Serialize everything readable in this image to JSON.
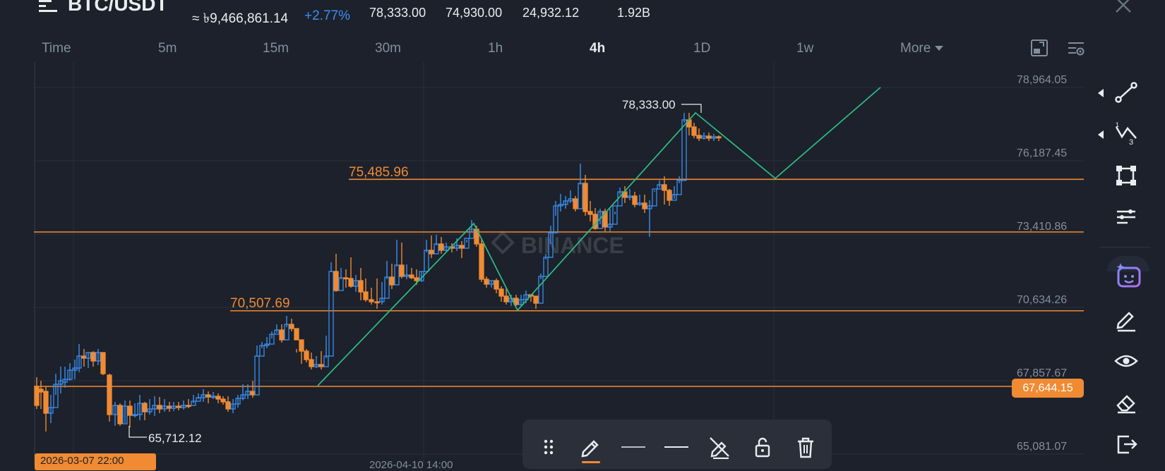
{
  "header": {
    "pair": "BTC/USDT",
    "approx_value": "≈ ৳9,466,861.14",
    "change_pct": "+2.77%",
    "stats": [
      "78,333.00",
      "74,930.00",
      "24,932.12",
      "1.92B"
    ]
  },
  "timeframes": {
    "items": [
      "Time",
      "5m",
      "15m",
      "30m",
      "1h",
      "4h",
      "1D",
      "1w"
    ],
    "active": "4h",
    "more_label": "More"
  },
  "chart": {
    "symbol": "BTC/USDT",
    "interval": "4h",
    "watermark": "BINANCE",
    "price_axis": [
      "78,964.05",
      "76,187.45",
      "73,410.86",
      "70,634.26",
      "67,857.67",
      "65,081.07"
    ],
    "current_price": "67,644.15",
    "level_labels": {
      "upper": "75,485.96",
      "lower": "70,507.69"
    },
    "high_marker": "78,333.00",
    "low_marker": "65,712.12",
    "time_axis": [
      "2026-03-07 22:00",
      "2026-04-10 14:00"
    ],
    "colors": {
      "up": "#3b8ff0",
      "down": "#f08a33",
      "trendline": "#2ebd85",
      "level": "#f08a33",
      "grid": "#2a303c"
    }
  },
  "right_toolbar": {
    "icons": [
      "trend-line-icon",
      "pattern-icon",
      "shape-icon",
      "adjust-icon",
      "ai-assistant-icon",
      "draw-pencil-icon",
      "visibility-eye-icon",
      "eraser-icon",
      "exit-icon"
    ]
  },
  "draw_toolbar": {
    "icons": [
      "drag-handle-icon",
      "pencil-icon",
      "line-style-icon",
      "line-width-icon",
      "hide-drawing-icon",
      "unlock-icon",
      "delete-icon"
    ]
  }
}
